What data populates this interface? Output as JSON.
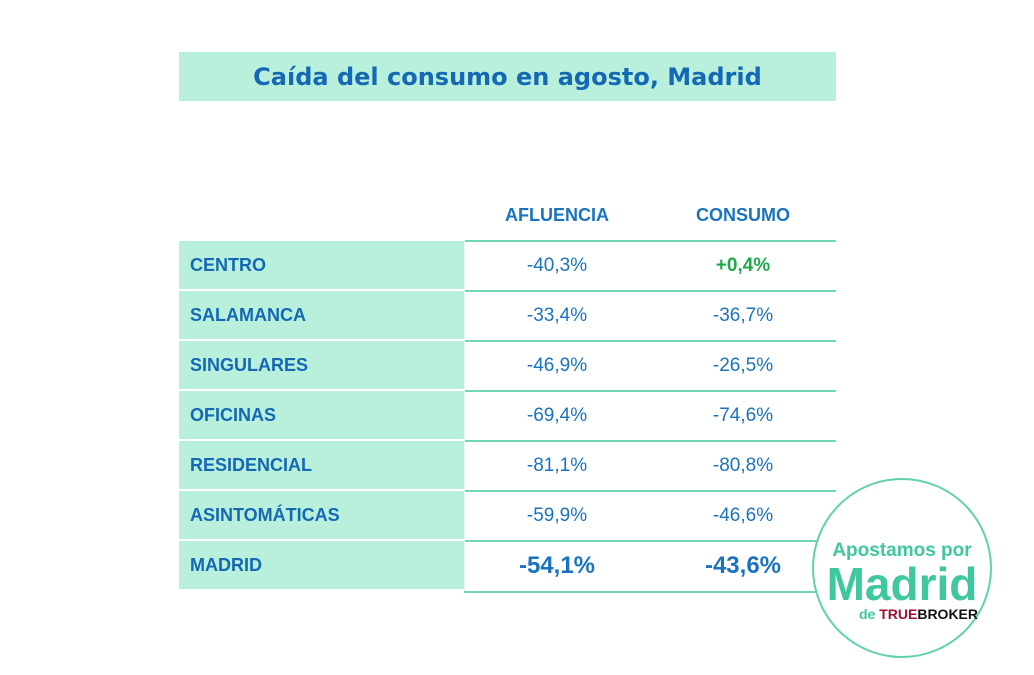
{
  "title": "Caída del consumo en agosto, Madrid",
  "chart_data": {
    "type": "table",
    "title": "Caída del consumo en agosto, Madrid",
    "columns": [
      "AFLUENCIA",
      "CONSUMO"
    ],
    "rows": [
      {
        "label": "CENTRO",
        "values": [
          "-40,3%",
          "+0,4%"
        ]
      },
      {
        "label": "SALAMANCA",
        "values": [
          "-33,4%",
          "-36,7%"
        ]
      },
      {
        "label": "SINGULARES",
        "values": [
          "-46,9%",
          "-26,5%"
        ]
      },
      {
        "label": "OFICINAS",
        "values": [
          "-69,4%",
          "-74,6%"
        ]
      },
      {
        "label": "RESIDENCIAL",
        "values": [
          "-81,1%",
          "-80,8%"
        ]
      },
      {
        "label": "ASINTOMÁTICAS",
        "values": [
          "-59,9%",
          "-46,6%"
        ]
      },
      {
        "label": "MADRID",
        "values": [
          "-54,1%",
          "-43,6%"
        ]
      }
    ]
  },
  "logo": {
    "line1": "Apostamos por",
    "line2": "Madrid",
    "de": "de",
    "true": "TRUE",
    "broker": "BROKER"
  },
  "colors": {
    "accent": "#b8f0dc",
    "text": "#1468b4",
    "positive": "#1fa84a"
  }
}
